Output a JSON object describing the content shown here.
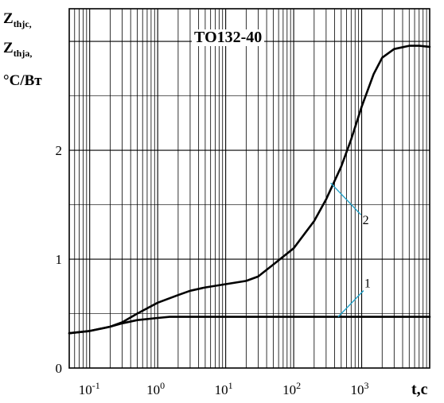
{
  "chart_data": {
    "type": "line",
    "title": "ТО132-40",
    "ylabel_lines": [
      "Z",
      "thjc,",
      "Z",
      "thja,",
      "°C/Вт"
    ],
    "xlabel": "t,c",
    "x_scale": "log",
    "xlim": [
      0.05,
      10000
    ],
    "ylim": [
      0,
      3.3
    ],
    "x_ticks": [
      {
        "base": "10",
        "exp": "-1"
      },
      {
        "base": "10",
        "exp": "0"
      },
      {
        "base": "10",
        "exp": "1"
      },
      {
        "base": "10",
        "exp": "2"
      },
      {
        "base": "10",
        "exp": "3"
      }
    ],
    "y_ticks": [
      "0",
      "1",
      "2"
    ],
    "grid": true,
    "series": [
      {
        "name": "1",
        "x": [
          0.05,
          0.1,
          0.2,
          0.3,
          0.5,
          1,
          1.5,
          2,
          5,
          10,
          100,
          1000,
          10000
        ],
        "y": [
          0.32,
          0.34,
          0.38,
          0.41,
          0.44,
          0.46,
          0.47,
          0.47,
          0.47,
          0.47,
          0.47,
          0.47,
          0.47
        ]
      },
      {
        "name": "2",
        "x": [
          0.05,
          0.1,
          0.2,
          0.3,
          0.5,
          1,
          2,
          3,
          5,
          10,
          20,
          30,
          50,
          100,
          200,
          300,
          500,
          700,
          1000,
          1500,
          2000,
          3000,
          5000,
          7000,
          10000
        ],
        "y": [
          0.32,
          0.34,
          0.38,
          0.42,
          0.5,
          0.6,
          0.67,
          0.71,
          0.74,
          0.77,
          0.8,
          0.84,
          0.95,
          1.1,
          1.35,
          1.55,
          1.85,
          2.1,
          2.4,
          2.7,
          2.85,
          2.93,
          2.96,
          2.96,
          2.95
        ]
      }
    ]
  }
}
